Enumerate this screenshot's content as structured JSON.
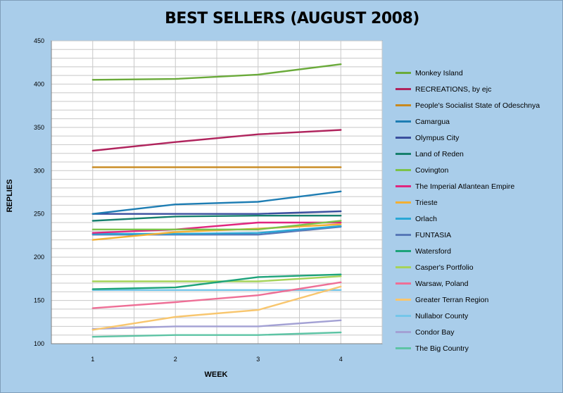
{
  "chart_data": {
    "type": "line",
    "title": "BEST SELLERS (AUGUST 2008)",
    "xlabel": "WEEK",
    "ylabel": "REPLIES",
    "x": [
      1,
      2,
      3,
      4
    ],
    "x_tick_labels": [
      "1",
      "2",
      "3",
      "4"
    ],
    "ylim": [
      100,
      450
    ],
    "y_ticks": [
      100,
      150,
      200,
      250,
      300,
      350,
      400,
      450
    ],
    "grid": true,
    "legend_position": "right",
    "series": [
      {
        "name": "Monkey Island",
        "color": "#6aaa3a",
        "values": [
          405,
          406,
          411,
          423
        ]
      },
      {
        "name": "RECREATIONS, by ejc",
        "color": "#b0245d",
        "values": [
          323,
          333,
          342,
          347
        ]
      },
      {
        "name": "People's Socialist State of Odeschnya",
        "color": "#c8891f",
        "values": [
          304,
          304,
          304,
          304
        ]
      },
      {
        "name": "Camargua",
        "color": "#1e7db3",
        "values": [
          250,
          261,
          264,
          276
        ]
      },
      {
        "name": "Olympus City",
        "color": "#3a4f9e",
        "values": [
          250,
          250,
          250,
          253
        ]
      },
      {
        "name": "Land of Reden",
        "color": "#17806e",
        "values": [
          242,
          247,
          248,
          248
        ]
      },
      {
        "name": "Covington",
        "color": "#7cc24a",
        "values": [
          232,
          232,
          232,
          242
        ]
      },
      {
        "name": "The Imperial Atlantean Empire",
        "color": "#e0267f",
        "values": [
          228,
          232,
          240,
          240
        ]
      },
      {
        "name": "Trieste",
        "color": "#f2b035",
        "values": [
          220,
          229,
          233,
          238
        ]
      },
      {
        "name": "Orlach",
        "color": "#2aa7d6",
        "values": [
          227,
          227,
          228,
          236
        ]
      },
      {
        "name": "FUNTASIA",
        "color": "#5879b8",
        "values": [
          226,
          226,
          226,
          235
        ]
      },
      {
        "name": "Watersford",
        "color": "#1da37a",
        "values": [
          163,
          165,
          177,
          180
        ]
      },
      {
        "name": "Casper's Portfolio",
        "color": "#a6d35a",
        "values": [
          172,
          172,
          172,
          178
        ]
      },
      {
        "name": "Warsaw, Poland",
        "color": "#ee6f96",
        "values": [
          141,
          148,
          156,
          171
        ]
      },
      {
        "name": "Greater Terran Region",
        "color": "#f8c66e",
        "values": [
          116,
          131,
          139,
          166
        ]
      },
      {
        "name": "Nullabor County",
        "color": "#74c6ea",
        "values": [
          162,
          162,
          162,
          162
        ]
      },
      {
        "name": "Condor Bay",
        "color": "#a3a1d4",
        "values": [
          117,
          120,
          120,
          127
        ]
      },
      {
        "name": "The Big Country",
        "color": "#5ec4a5",
        "values": [
          108,
          110,
          110,
          113
        ]
      }
    ]
  }
}
